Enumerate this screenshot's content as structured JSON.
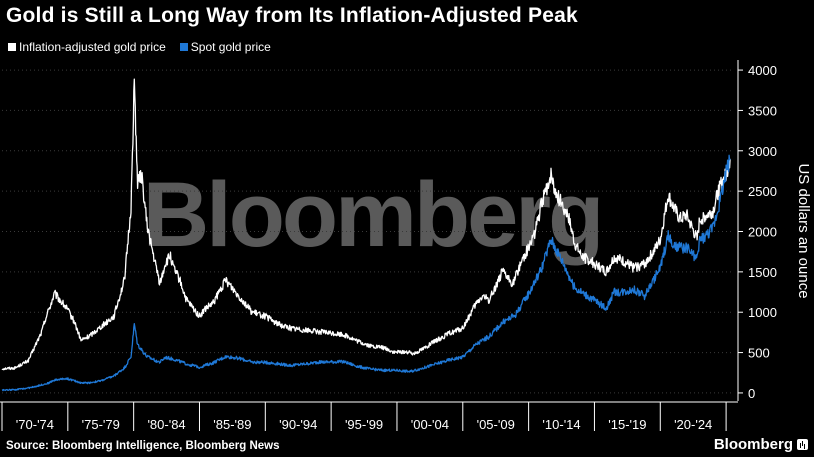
{
  "chart_data": {
    "type": "line",
    "title": "Gold is Still a Long Way from Its Inflation-Adjusted Peak",
    "ylabel": "US dollars an ounce",
    "ylim": [
      -100,
      4100
    ],
    "yticks": [
      0,
      500,
      1000,
      1500,
      2000,
      2500,
      3000,
      3500,
      4000
    ],
    "xlim": [
      1970,
      2025.6
    ],
    "x_tick_labels": [
      "'70-'74",
      "'75-'79",
      "'80-'84",
      "'85-'89",
      "'90-'94",
      "'95-'99",
      "'00-'04",
      "'05-'09",
      "'10-'14",
      "'15-'19",
      "'20-'24"
    ],
    "watermark": "Bloomberg",
    "series": [
      {
        "name": "Inflation-adjusted gold price",
        "color": "#ffffff",
        "x": [
          1970.0,
          1971.0,
          1972.0,
          1973.0,
          1973.3,
          1974.0,
          1974.4,
          1974.9,
          1975.5,
          1976.0,
          1976.6,
          1977.5,
          1978.5,
          1979.3,
          1979.8,
          1980.05,
          1980.3,
          1980.6,
          1981.0,
          1981.5,
          1982.0,
          1982.4,
          1982.8,
          1983.0,
          1983.5,
          1984.0,
          1984.5,
          1985.0,
          1985.5,
          1986.0,
          1986.5,
          1987.0,
          1987.5,
          1988.0,
          1988.5,
          1989.0,
          1990.0,
          1991.0,
          1992.0,
          1993.0,
          1994.0,
          1995.0,
          1996.0,
          1997.0,
          1998.0,
          1999.0,
          1999.8,
          2000.5,
          2001.3,
          2002.0,
          2003.0,
          2004.0,
          2005.0,
          2006.0,
          2006.5,
          2007.0,
          2008.0,
          2008.8,
          2009.5,
          2010.0,
          2010.5,
          2011.0,
          2011.7,
          2012.0,
          2012.5,
          2013.0,
          2013.5,
          2014.0,
          2015.0,
          2015.9,
          2016.5,
          2017.0,
          2018.0,
          2018.8,
          2019.5,
          2020.0,
          2020.6,
          2021.0,
          2021.5,
          2022.0,
          2022.8,
          2023.0,
          2023.5,
          2024.0,
          2024.5,
          2025.0,
          2025.3
        ],
        "values": [
          300,
          310,
          400,
          750,
          920,
          1230,
          1150,
          1050,
          880,
          650,
          700,
          820,
          950,
          1400,
          2300,
          3850,
          2600,
          2700,
          2100,
          1700,
          1350,
          1600,
          1700,
          1550,
          1400,
          1150,
          1050,
          950,
          1050,
          1100,
          1250,
          1400,
          1300,
          1200,
          1100,
          1000,
          950,
          850,
          800,
          780,
          760,
          740,
          720,
          640,
          580,
          560,
          500,
          510,
          490,
          550,
          650,
          740,
          800,
          1100,
          1200,
          1150,
          1500,
          1350,
          1650,
          1800,
          2000,
          2350,
          2700,
          2500,
          2350,
          2200,
          1850,
          1700,
          1600,
          1500,
          1680,
          1650,
          1550,
          1600,
          1750,
          1900,
          2450,
          2300,
          2150,
          2200,
          1900,
          2150,
          2200,
          2250,
          2550,
          2700,
          2900
        ]
      },
      {
        "name": "Spot gold price",
        "color": "#1f78d6",
        "x": [
          1970.0,
          1971.0,
          1972.0,
          1973.0,
          1973.5,
          1974.0,
          1974.9,
          1975.5,
          1976.0,
          1976.6,
          1977.5,
          1978.5,
          1979.3,
          1979.8,
          1980.05,
          1980.3,
          1981.0,
          1982.0,
          1982.4,
          1983.0,
          1984.0,
          1985.0,
          1986.0,
          1987.0,
          1988.0,
          1989.0,
          1990.0,
          1991.0,
          1992.0,
          1993.0,
          1994.0,
          1995.0,
          1996.0,
          1997.0,
          1998.0,
          1999.0,
          2000.0,
          2001.0,
          2002.0,
          2003.0,
          2004.0,
          2005.0,
          2006.0,
          2007.0,
          2008.0,
          2009.0,
          2010.0,
          2011.0,
          2011.7,
          2012.5,
          2013.5,
          2014.0,
          2015.0,
          2015.9,
          2016.5,
          2017.0,
          2018.0,
          2018.8,
          2019.5,
          2020.0,
          2020.6,
          2021.0,
          2022.0,
          2022.8,
          2023.0,
          2023.5,
          2024.0,
          2024.5,
          2025.0,
          2025.3
        ],
        "values": [
          35,
          40,
          60,
          100,
          120,
          160,
          180,
          150,
          125,
          125,
          150,
          210,
          310,
          450,
          850,
          600,
          450,
          380,
          440,
          420,
          360,
          320,
          370,
          450,
          430,
          380,
          380,
          360,
          340,
          360,
          380,
          385,
          385,
          330,
          295,
          280,
          280,
          265,
          310,
          360,
          410,
          445,
          600,
          700,
          870,
          970,
          1230,
          1550,
          1900,
          1650,
          1300,
          1250,
          1150,
          1050,
          1250,
          1250,
          1280,
          1200,
          1400,
          1550,
          1950,
          1800,
          1800,
          1650,
          1900,
          1950,
          2050,
          2350,
          2750,
          2900
        ]
      }
    ]
  }
}
